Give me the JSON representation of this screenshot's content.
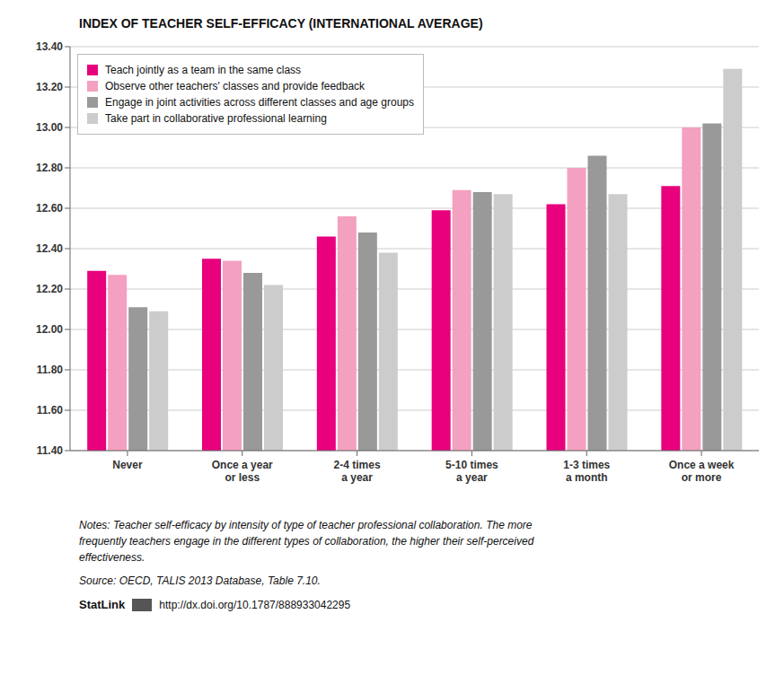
{
  "chart_data": {
    "type": "bar",
    "title": "INDEX OF TEACHER SELF-EFFICACY (INTERNATIONAL AVERAGE)",
    "categories": [
      "Never",
      "Once a year\nor less",
      "2-4 times\na year",
      "5-10 times\na year",
      "1-3 times\na month",
      "Once a week\nor more"
    ],
    "series": [
      {
        "name": "Teach jointly as a team in the same class",
        "color": "#E8007D",
        "values": [
          12.29,
          12.35,
          12.46,
          12.59,
          12.62,
          12.71
        ]
      },
      {
        "name": "Observe other teachers' classes and provide feedback",
        "color": "#F4A0C0",
        "values": [
          12.27,
          12.34,
          12.56,
          12.69,
          12.8,
          13.0
        ]
      },
      {
        "name": "Engage in joint activities across different classes and age groups",
        "color": "#999999",
        "values": [
          12.11,
          12.28,
          12.48,
          12.68,
          12.86,
          13.02
        ]
      },
      {
        "name": "Take part in collaborative professional learning",
        "color": "#CCCCCC",
        "values": [
          12.09,
          12.22,
          12.38,
          12.67,
          12.67,
          13.29
        ]
      }
    ],
    "ylim": [
      11.4,
      13.4
    ],
    "yticks": [
      {
        "value": 11.4,
        "label": "11.40"
      },
      {
        "value": 11.6,
        "label": "11.60"
      },
      {
        "value": 11.8,
        "label": "11.80"
      },
      {
        "value": 12.0,
        "label": "12.00"
      },
      {
        "value": 12.2,
        "label": "12.20"
      },
      {
        "value": 12.4,
        "label": "12.40"
      },
      {
        "value": 12.6,
        "label": "12.60"
      },
      {
        "value": 12.8,
        "label": "12.80"
      },
      {
        "value": 13.0,
        "label": "13.00"
      },
      {
        "value": 13.2,
        "label": "13.20"
      },
      {
        "value": 13.4,
        "label": "13.40"
      }
    ],
    "grid": true,
    "legend": "upper left",
    "annotations": [
      "Notes: Teacher self-efficacy by intensity of type of teacher professional collaboration. The more",
      "frequently teachers engage in the different types of collaboration, the higher their self-perceived",
      "effectiveness.",
      "Source: OECD, TALIS 2013 Database, Table 7.10.",
      "StatLink",
      "http://dx.doi.org/10.1787/888933042295"
    ]
  }
}
